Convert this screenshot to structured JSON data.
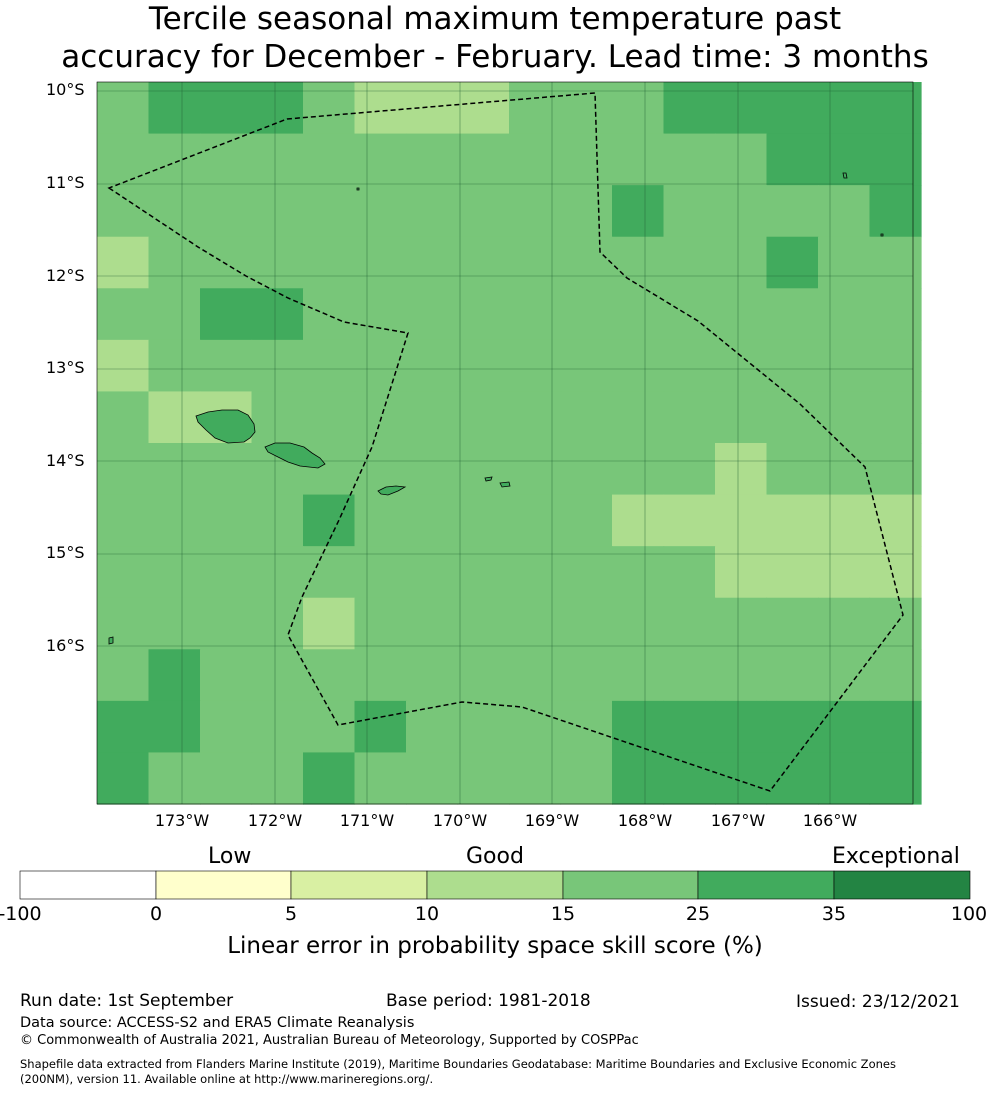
{
  "title": {
    "line1": "Tercile seasonal maximum temperature past",
    "line2": "accuracy for December - February. Lead time: 3 months"
  },
  "map": {
    "lat_labels": [
      "10°S",
      "11°S",
      "12°S",
      "13°S",
      "14°S",
      "15°S",
      "16°S"
    ],
    "lon_labels": [
      "173°W",
      "172°W",
      "171°W",
      "170°W",
      "169°W",
      "168°W",
      "167°W",
      "166°W"
    ],
    "grid_classes": [
      [
        4,
        5,
        5,
        5,
        4,
        3,
        3,
        3,
        4,
        4,
        4,
        5,
        5,
        5,
        5,
        5
      ],
      [
        4,
        4,
        4,
        4,
        4,
        4,
        4,
        4,
        4,
        4,
        4,
        4,
        4,
        5,
        5,
        5
      ],
      [
        4,
        4,
        4,
        4,
        4,
        4,
        4,
        4,
        4,
        4,
        5,
        4,
        4,
        4,
        4,
        5
      ],
      [
        3,
        4,
        4,
        4,
        4,
        4,
        4,
        4,
        4,
        4,
        4,
        4,
        4,
        5,
        4,
        4
      ],
      [
        4,
        4,
        5,
        5,
        4,
        4,
        4,
        4,
        4,
        4,
        4,
        4,
        4,
        4,
        4,
        4
      ],
      [
        3,
        4,
        4,
        4,
        4,
        4,
        4,
        4,
        4,
        4,
        4,
        4,
        4,
        4,
        4,
        4
      ],
      [
        4,
        3,
        3,
        4,
        4,
        4,
        4,
        4,
        4,
        4,
        4,
        4,
        4,
        4,
        4,
        4
      ],
      [
        4,
        4,
        4,
        4,
        4,
        4,
        4,
        4,
        4,
        4,
        4,
        4,
        3,
        4,
        4,
        4
      ],
      [
        4,
        4,
        4,
        4,
        5,
        4,
        4,
        4,
        4,
        4,
        3,
        3,
        3,
        3,
        3,
        3
      ],
      [
        4,
        4,
        4,
        4,
        4,
        4,
        4,
        4,
        4,
        4,
        4,
        4,
        3,
        3,
        3,
        3
      ],
      [
        4,
        4,
        4,
        4,
        3,
        4,
        4,
        4,
        4,
        4,
        4,
        4,
        4,
        4,
        4,
        4
      ],
      [
        4,
        5,
        4,
        4,
        4,
        4,
        4,
        4,
        4,
        4,
        4,
        4,
        4,
        4,
        4,
        4
      ],
      [
        5,
        5,
        4,
        4,
        4,
        5,
        4,
        4,
        4,
        4,
        5,
        5,
        5,
        5,
        5,
        5
      ],
      [
        5,
        4,
        4,
        4,
        5,
        4,
        4,
        4,
        4,
        4,
        5,
        5,
        5,
        5,
        5,
        5
      ]
    ]
  },
  "colorbar": {
    "words": [
      "Low",
      "Good",
      "Exceptional"
    ],
    "ticks": [
      "-100",
      "0",
      "5",
      "10",
      "15",
      "25",
      "35",
      "100"
    ],
    "colors": [
      "#ffffff",
      "#ffffcc",
      "#d9f0a3",
      "#addd8e",
      "#78c679",
      "#41ab5d",
      "#238443"
    ],
    "label": "Linear error in probability space skill score (%)"
  },
  "footer": {
    "run_date": "Run date: 1st September",
    "base_period": "Base period: 1981-2018",
    "issued": "Issued: 23/12/2021",
    "data_source": "Data source: ACCESS-S2 and ERA5 Climate Reanalysis",
    "copyright": "© Commonwealth of Australia 2021, Australian Bureau of Meteorology, Supported by COSPPac",
    "shapefile_line1": "Shapefile data extracted from Flanders Marine Institute (2019), Maritime Boundaries Geodatabase: Maritime Boundaries and Exclusive Economic Zones",
    "shapefile_line2": "(200NM), version 11. Available online at http://www.marineregions.org/."
  }
}
